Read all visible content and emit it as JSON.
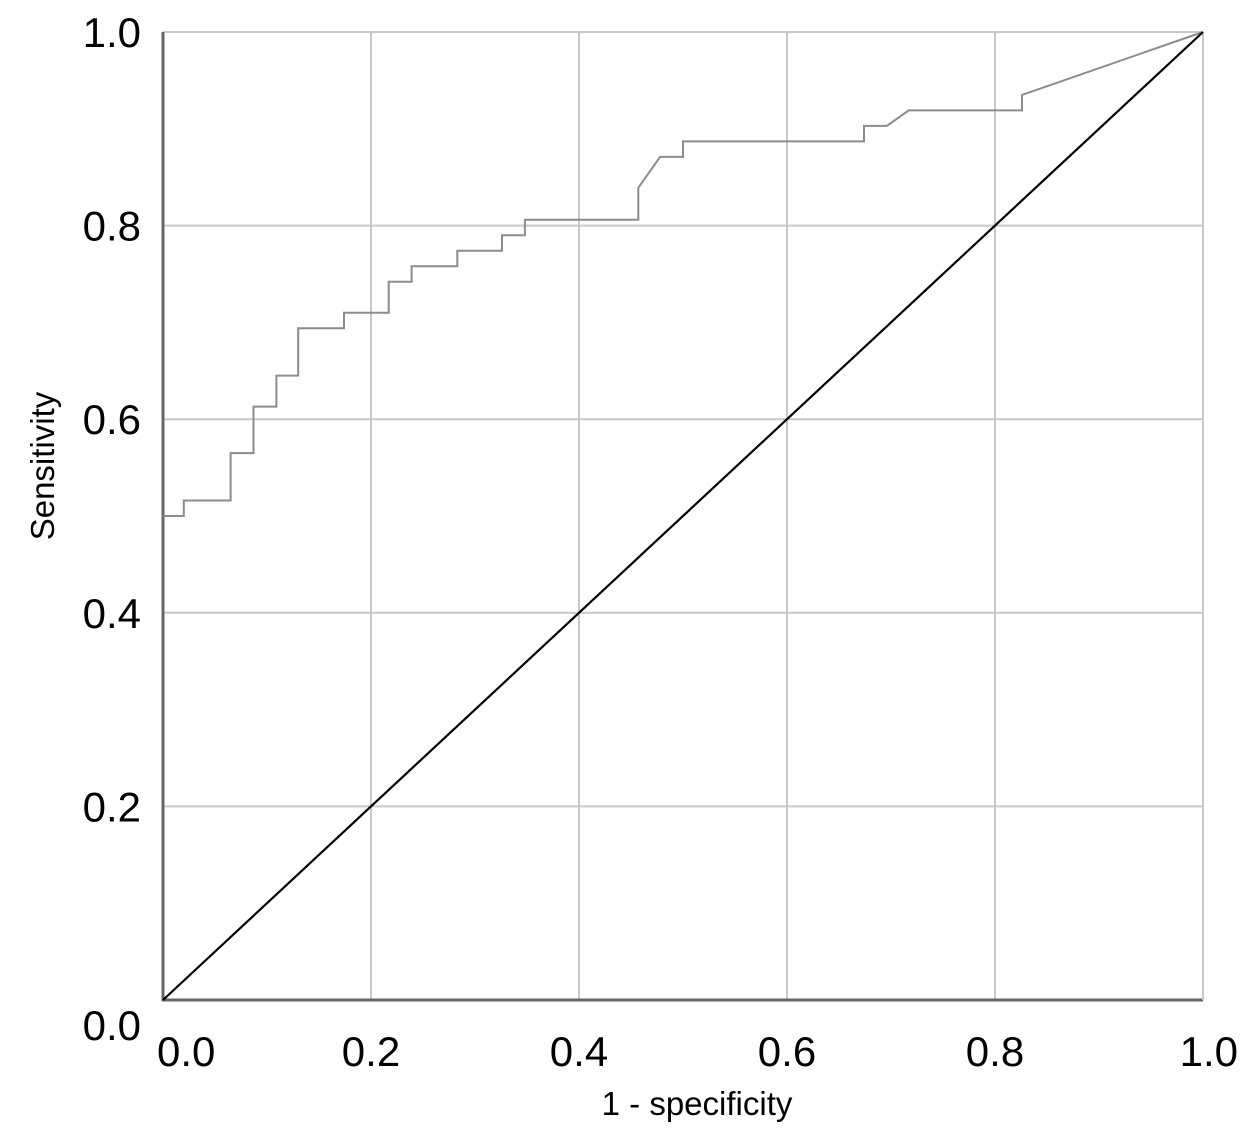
{
  "chart_data": {
    "type": "line",
    "title": "",
    "xlabel": "1 - specificity",
    "ylabel": "Sensitivity",
    "xlim": [
      0,
      1
    ],
    "ylim": [
      0,
      1
    ],
    "grid": true,
    "x_ticks": [
      "0.0",
      "0.2",
      "0.4",
      "0.6",
      "0.8",
      "1.0"
    ],
    "y_ticks": [
      "0.0",
      "0.2",
      "0.4",
      "0.6",
      "0.8",
      "1.0"
    ],
    "series": [
      {
        "name": "",
        "color": "#8c8c8c",
        "x": [
          0.0,
          0.02,
          0.02,
          0.065,
          0.065,
          0.087,
          0.087,
          0.109,
          0.109,
          0.13,
          0.13,
          0.174,
          0.174,
          0.217,
          0.217,
          0.239,
          0.239,
          0.283,
          0.283,
          0.326,
          0.326,
          0.348,
          0.348,
          0.457,
          0.457,
          0.478,
          0.5,
          0.5,
          0.674,
          0.674,
          0.696,
          0.717,
          0.826,
          0.826,
          1.0
        ],
        "y": [
          0.5,
          0.5,
          0.516,
          0.516,
          0.565,
          0.565,
          0.613,
          0.613,
          0.645,
          0.645,
          0.694,
          0.694,
          0.71,
          0.71,
          0.742,
          0.742,
          0.758,
          0.758,
          0.774,
          0.774,
          0.79,
          0.79,
          0.806,
          0.806,
          0.839,
          0.871,
          0.871,
          0.887,
          0.887,
          0.903,
          0.903,
          0.919,
          0.919,
          0.935,
          1.0
        ]
      },
      {
        "name": "",
        "color": "#000000",
        "x": [
          0,
          1
        ],
        "y": [
          0,
          1
        ]
      }
    ]
  }
}
